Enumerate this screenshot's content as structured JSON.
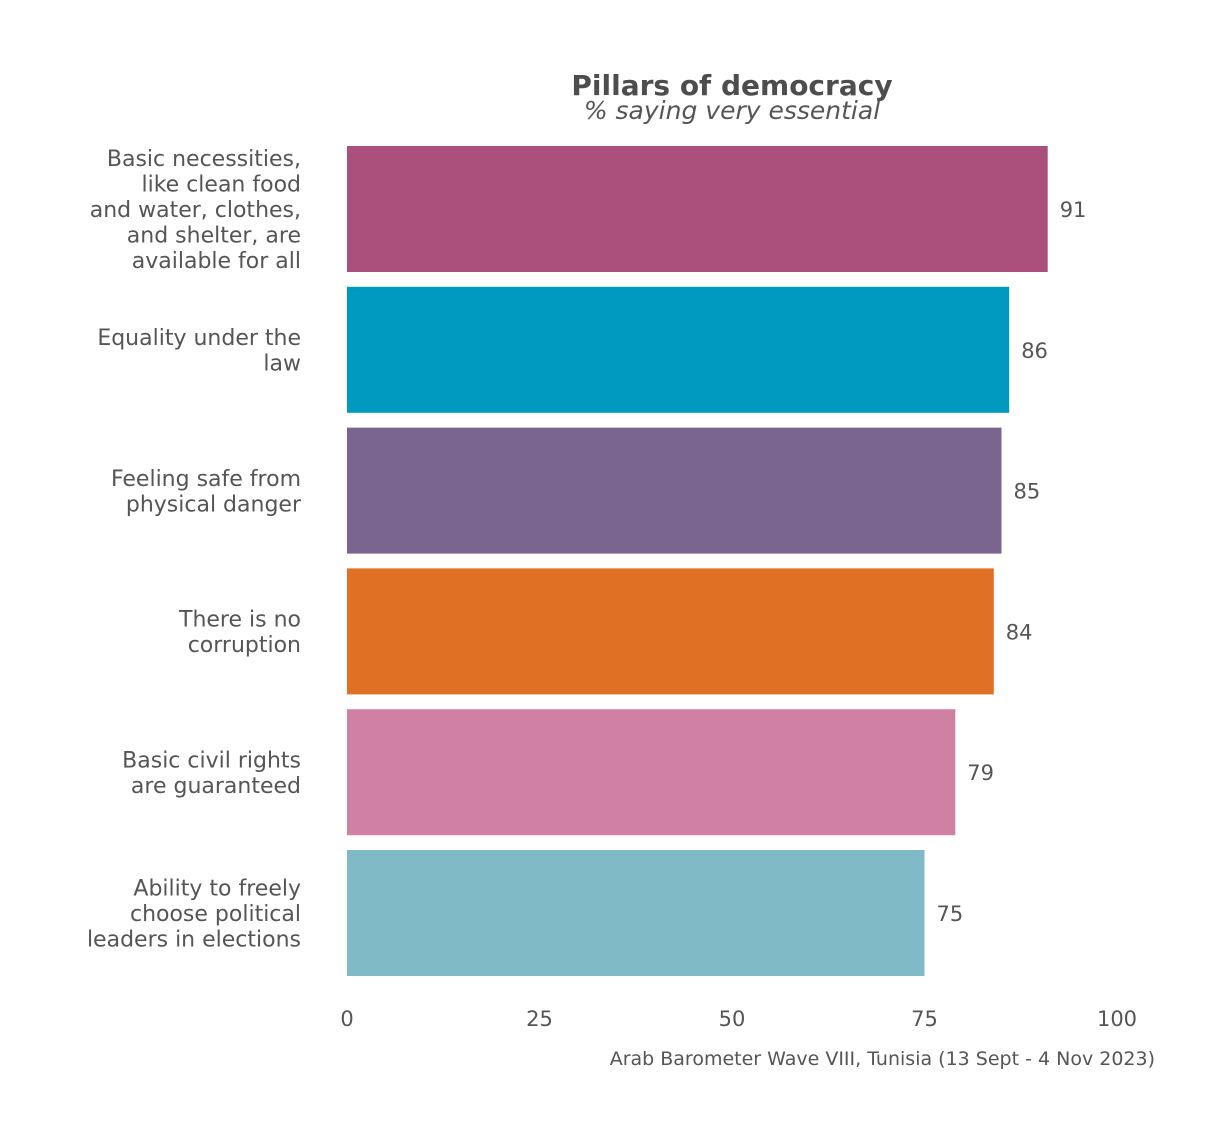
{
  "chart_data": {
    "type": "bar",
    "orientation": "horizontal",
    "title": "Pillars of democracy",
    "subtitle": "% saying very essential",
    "categories": [
      [
        "Basic necessities,",
        "like clean food",
        "and water, clothes,",
        "and shelter, are",
        "available for all"
      ],
      [
        "Equality under the",
        "law"
      ],
      [
        "Feeling safe from",
        "physical danger"
      ],
      [
        "There is no",
        "corruption"
      ],
      [
        "Basic civil rights",
        "are guaranteed"
      ],
      [
        "Ability to freely",
        "choose political",
        "leaders in elections"
      ]
    ],
    "values": [
      91,
      86,
      85,
      84,
      79,
      75
    ],
    "value_labels": [
      "91",
      "86",
      "85",
      "84",
      "79",
      "75"
    ],
    "colors": [
      "#ab4f7c",
      "#009ac0",
      "#7a6590",
      "#e07024",
      "#d081a3",
      "#80bac6"
    ],
    "xlim": [
      0,
      100
    ],
    "xticks": [
      0,
      25,
      50,
      75,
      100
    ],
    "xtick_labels": [
      "0",
      "25",
      "50",
      "75",
      "100"
    ],
    "grid": false,
    "legend": "none",
    "caption": "Arab Barometer Wave VIII, Tunisia (13 Sept - 4 Nov 2023)"
  }
}
